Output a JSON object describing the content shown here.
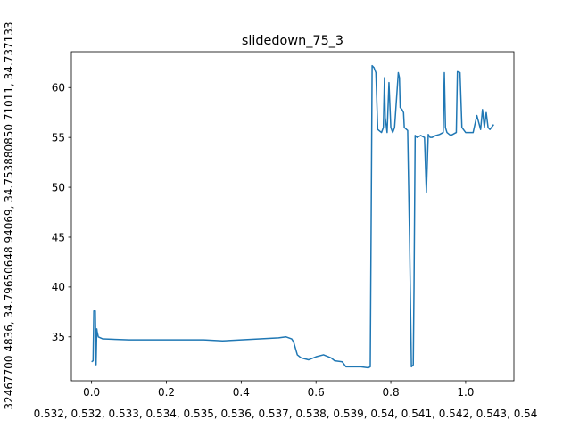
{
  "chart_data": {
    "type": "line",
    "title": "slidedown_75_3",
    "xlabel": "0.532, 0.532, 0.533, 0.534, 0.535, 0.536, 0.537, 0.538, 0.539, 0.54, 0.541, 0.542, 0.543, 0.54",
    "ylabel": "32467700 4836, 34.79650648 94069, 34.753880850 71011, 34.737133",
    "xlim": [
      -0.054,
      1.129
    ],
    "ylim": [
      30.6,
      63.6
    ],
    "xticks": [
      0.0,
      0.2,
      0.4,
      0.6,
      0.8,
      1.0
    ],
    "xtick_labels": [
      "0.0",
      "0.2",
      "0.4",
      "0.6",
      "0.8",
      "1.0"
    ],
    "yticks": [
      35,
      40,
      45,
      50,
      55,
      60
    ],
    "ytick_labels": [
      "35",
      "40",
      "45",
      "50",
      "55",
      "60"
    ],
    "grid": false,
    "line_color": "#1f77b4",
    "series": [
      {
        "name": "slidedown_75_3",
        "x": [
          0.0,
          0.004,
          0.006,
          0.008,
          0.01,
          0.012,
          0.014,
          0.015,
          0.018,
          0.03,
          0.1,
          0.2,
          0.3,
          0.35,
          0.4,
          0.45,
          0.5,
          0.52,
          0.535,
          0.54,
          0.55,
          0.56,
          0.58,
          0.6,
          0.62,
          0.64,
          0.65,
          0.67,
          0.68,
          0.7,
          0.72,
          0.74,
          0.745,
          0.75,
          0.755,
          0.76,
          0.765,
          0.775,
          0.78,
          0.783,
          0.785,
          0.79,
          0.795,
          0.8,
          0.805,
          0.81,
          0.82,
          0.823,
          0.825,
          0.83,
          0.834,
          0.836,
          0.845,
          0.85,
          0.855,
          0.86,
          0.862,
          0.865,
          0.87,
          0.88,
          0.89,
          0.895,
          0.9,
          0.905,
          0.91,
          0.92,
          0.93,
          0.94,
          0.943,
          0.946,
          0.95,
          0.96,
          0.975,
          0.978,
          0.985,
          0.99,
          1.0,
          1.02,
          1.03,
          1.04,
          1.045,
          1.05,
          1.055,
          1.06,
          1.065,
          1.075
        ],
        "y": [
          32.5,
          32.6,
          37.6,
          37.6,
          37.6,
          32.2,
          35.8,
          35.5,
          35.0,
          34.8,
          34.7,
          34.7,
          34.7,
          34.6,
          34.7,
          34.8,
          34.9,
          35.0,
          34.8,
          34.5,
          33.2,
          32.9,
          32.7,
          33.0,
          33.2,
          32.9,
          32.6,
          32.5,
          32.0,
          32.0,
          32.0,
          31.9,
          32.0,
          62.2,
          62.0,
          61.5,
          55.8,
          55.5,
          56.0,
          61.0,
          57.0,
          55.5,
          60.5,
          56.0,
          55.5,
          56.0,
          61.5,
          61.0,
          58.0,
          57.8,
          57.5,
          56.0,
          55.7,
          45.0,
          32.0,
          32.2,
          40.0,
          55.2,
          55.0,
          55.2,
          55.0,
          49.5,
          55.3,
          55.0,
          55.0,
          55.2,
          55.3,
          55.5,
          61.5,
          56.0,
          55.5,
          55.2,
          55.5,
          61.6,
          61.5,
          56.0,
          55.5,
          55.5,
          57.2,
          55.8,
          57.8,
          56.0,
          57.5,
          56.0,
          55.8,
          56.3
        ]
      }
    ]
  }
}
